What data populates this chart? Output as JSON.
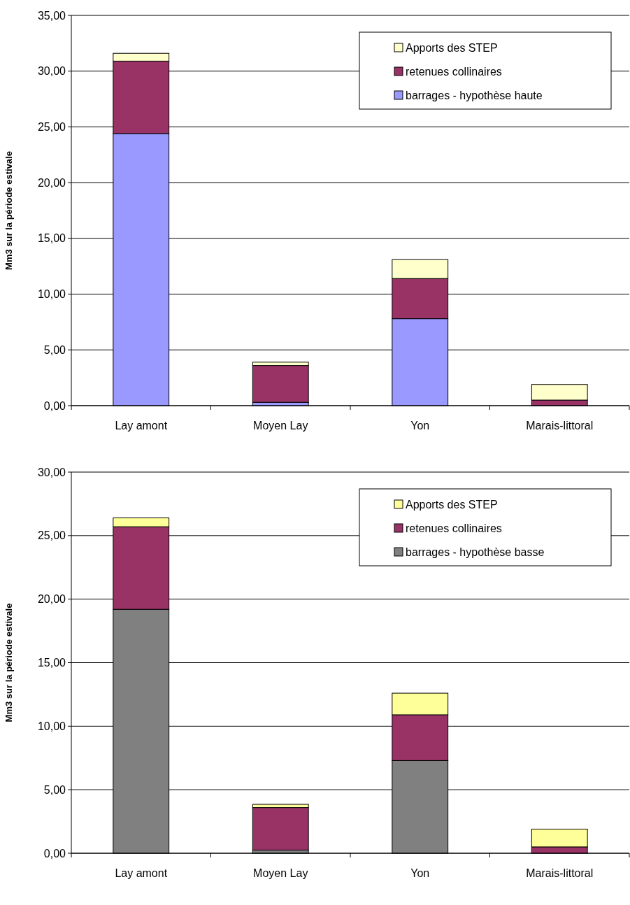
{
  "chart_data": [
    {
      "type": "bar",
      "stacked": true,
      "ylabel": "Mm3 sur la période estivale",
      "categories": [
        "Lay amont",
        "Moyen Lay",
        "Yon",
        "Marais-littoral"
      ],
      "series": [
        {
          "name": "barrages - hypothèse haute",
          "color": "#9999ff",
          "values": [
            24.4,
            0.3,
            7.8,
            0
          ]
        },
        {
          "name": "retenues collinaires",
          "color": "#993366",
          "values": [
            6.5,
            3.3,
            3.6,
            0.5
          ]
        },
        {
          "name": "Apports des STEP",
          "color": "#ffffcc",
          "values": [
            0.7,
            0.3,
            1.7,
            1.4
          ]
        }
      ],
      "ylim": [
        0,
        35
      ],
      "yticks": [
        {
          "value": 0,
          "label": "0,00"
        },
        {
          "value": 5,
          "label": "5,00"
        },
        {
          "value": 10,
          "label": "10,00"
        },
        {
          "value": 15,
          "label": "15,00"
        },
        {
          "value": 20,
          "label": "20,00"
        },
        {
          "value": 25,
          "label": "25,00"
        },
        {
          "value": 30,
          "label": "30,00"
        },
        {
          "value": 35,
          "label": "35,00"
        }
      ],
      "grid": "y",
      "legend": "top right"
    },
    {
      "type": "bar",
      "stacked": true,
      "ylabel": "Mm3 sur la période estivale",
      "categories": [
        "Lay amont",
        "Moyen Lay",
        "Yon",
        "Marais-littoral"
      ],
      "series": [
        {
          "name": "barrages - hypothèse basse",
          "color": "#808080",
          "values": [
            19.2,
            0.25,
            7.3,
            0
          ]
        },
        {
          "name": "retenues collinaires",
          "color": "#993366",
          "values": [
            6.5,
            3.35,
            3.6,
            0.5
          ]
        },
        {
          "name": "Apports des STEP",
          "color": "#ffff99",
          "values": [
            0.7,
            0.25,
            1.7,
            1.4
          ]
        }
      ],
      "ylim": [
        0,
        30
      ],
      "yticks": [
        {
          "value": 0,
          "label": "0,00"
        },
        {
          "value": 5,
          "label": "5,00"
        },
        {
          "value": 10,
          "label": "10,00"
        },
        {
          "value": 15,
          "label": "15,00"
        },
        {
          "value": 20,
          "label": "20,00"
        },
        {
          "value": 25,
          "label": "25,00"
        },
        {
          "value": 30,
          "label": "30,00"
        }
      ],
      "grid": "y",
      "legend": "top right"
    }
  ]
}
